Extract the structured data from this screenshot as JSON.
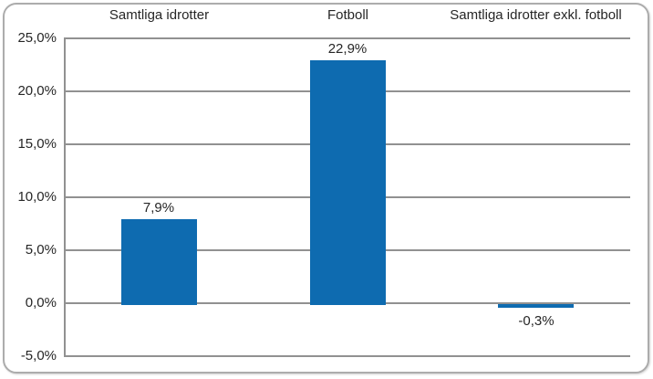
{
  "chart_data": {
    "type": "bar",
    "title": "",
    "categories": [
      "Samtliga idrotter",
      "Fotboll",
      "Samtliga idrotter exkl. fotboll"
    ],
    "values": [
      7.9,
      22.9,
      -0.3
    ],
    "data_labels": [
      "7,9%",
      "22,9%",
      "-0,3%"
    ],
    "y_ticks": {
      "values": [
        25,
        20,
        15,
        10,
        5,
        0,
        -5
      ],
      "labels": [
        "25,0%",
        "20,0%",
        "15,0%",
        "10,0%",
        "5,0%",
        "0,0%",
        "-5,0%"
      ]
    },
    "ylim": [
      -5,
      25
    ],
    "grid": true,
    "legend": "none",
    "xlabel": "",
    "ylabel": "",
    "bar_color": "#0E6BB0",
    "gridline_color": "#919191",
    "axis_color": "#919191",
    "text_color": "#262626",
    "frame_border_color": "#ACACAC",
    "background": "#FFFFFF"
  }
}
